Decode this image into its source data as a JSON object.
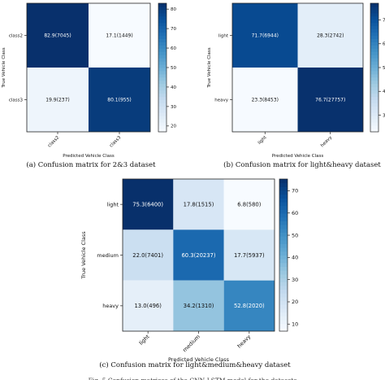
{
  "chart_data": [
    {
      "type": "heatmap",
      "caption": "(a) Confusion matrix for 2&3 dataset",
      "xlabel": "Predicted Vehicle Class",
      "ylabel": "True Vehicle Class",
      "x_categories": [
        "class2",
        "class3"
      ],
      "y_categories": [
        "class2",
        "class3"
      ],
      "values": [
        [
          82.9,
          17.1
        ],
        [
          19.9,
          80.1
        ]
      ],
      "cell_labels": [
        [
          "82.9(7045)",
          "17.1(1449)"
        ],
        [
          "19.9(237)",
          "80.1(955)"
        ]
      ],
      "colorbar": {
        "min": 17,
        "max": 83,
        "ticks": [
          20,
          30,
          40,
          50,
          60,
          70,
          80
        ]
      },
      "colormap": "Blues"
    },
    {
      "type": "heatmap",
      "caption": "(b) Confusion matrix for light&heavy dataset",
      "xlabel": "Predicted Vehicle Class",
      "ylabel": "True Vehicle Class",
      "x_categories": [
        "light",
        "heavy"
      ],
      "y_categories": [
        "light",
        "heavy"
      ],
      "values": [
        [
          71.7,
          28.3
        ],
        [
          23.3,
          76.7
        ]
      ],
      "cell_labels": [
        [
          "71.7(6944)",
          "28.3(2742)"
        ],
        [
          "23.3(8453)",
          "76.7(27757)"
        ]
      ],
      "colorbar": {
        "min": 23,
        "max": 77,
        "ticks": [
          30,
          40,
          50,
          60,
          70
        ]
      },
      "colormap": "Blues"
    },
    {
      "type": "heatmap",
      "caption": "(c) Confusion matrix for light&medium&heavy dataset",
      "xlabel": "Predicted Vehicle Class",
      "ylabel": "True Vehicle Class",
      "x_categories": [
        "light",
        "medium",
        "heavy"
      ],
      "y_categories": [
        "light",
        "medium",
        "heavy"
      ],
      "values": [
        [
          75.3,
          17.8,
          6.8
        ],
        [
          22.0,
          60.3,
          17.7
        ],
        [
          13.0,
          34.2,
          52.8
        ]
      ],
      "cell_labels": [
        [
          "75.3(6400)",
          "17.8(1515)",
          "6.8(580)"
        ],
        [
          "22.0(7401)",
          "60.3(20237)",
          "17.7(5937)"
        ],
        [
          "13.0(496)",
          "34.2(1310)",
          "52.8(2020)"
        ]
      ],
      "colorbar": {
        "min": 6.8,
        "max": 75.3,
        "ticks": [
          10,
          20,
          30,
          40,
          50,
          60,
          70
        ]
      },
      "colormap": "Blues"
    }
  ],
  "figure_caption": "Fig. 5 Confusion matrices of the CNN-LSTM model for the datasets"
}
